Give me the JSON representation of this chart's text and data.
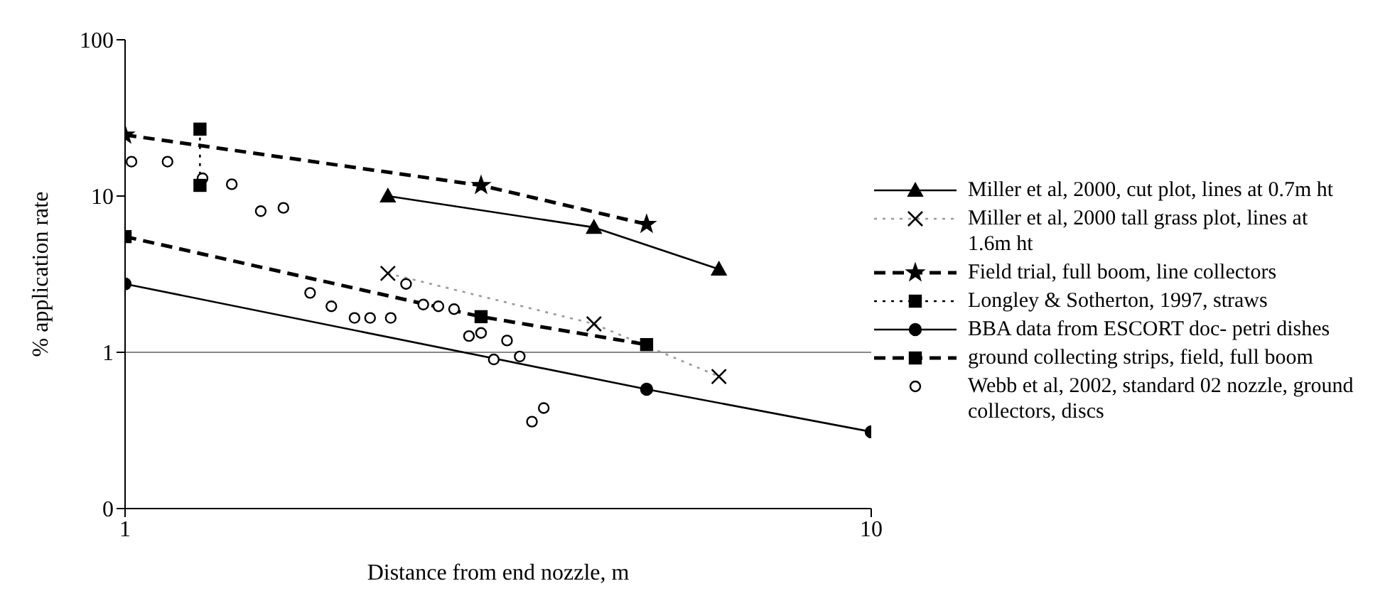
{
  "chart_data": {
    "type": "line",
    "xlabel": "Distance from end nozzle, m",
    "ylabel": "% application rate",
    "log": "xy",
    "xlim": [
      1,
      10
    ],
    "xticks": [
      1,
      10
    ],
    "ylim": [
      0.1,
      100
    ],
    "yticks": [
      {
        "value": 0.1,
        "label": "0"
      },
      1,
      10,
      100
    ],
    "grid": false,
    "legend": "right",
    "ref_lines": [
      {
        "axis": "y",
        "value": 1,
        "color": "#888888"
      }
    ],
    "series": [
      {
        "name": "Miller et al, 2000, cut plot, lines at 0.7m ht",
        "color": "#000000",
        "marker": "triangle",
        "line_style": "solid",
        "x": [
          2.25,
          4.25,
          6.25
        ],
        "values": [
          10,
          6.3,
          3.4
        ]
      },
      {
        "name": "Miller et al, 2000 tall grass plot, lines at 1.6m ht",
        "color": "#999999",
        "marker": "cross",
        "line_style": "dotted",
        "x": [
          2.25,
          4.25,
          6.25
        ],
        "values": [
          3.2,
          1.52,
          0.7
        ]
      },
      {
        "name": "Field trial, full boom, line collectors",
        "color": "#000000",
        "marker": "star",
        "line_style": "dashed",
        "x": [
          1,
          3,
          5
        ],
        "values": [
          24.6,
          11.7,
          6.6
        ]
      },
      {
        "name": "Longley & Sotherton, 1997, straws",
        "color": "#000000",
        "marker": "square",
        "line_style": "dotted",
        "x": [
          1.26,
          1.26
        ],
        "values": [
          26.8,
          11.7
        ]
      },
      {
        "name": "BBA data from ESCORT doc- petri dishes",
        "color": "#000000",
        "marker": "circle",
        "line_style": "solid",
        "x": [
          1,
          5,
          10
        ],
        "values": [
          2.74,
          0.58,
          0.31
        ]
      },
      {
        "name": "ground collecting strips, field, full boom",
        "color": "#000000",
        "marker": "square",
        "line_style": "dashed",
        "x": [
          1,
          3,
          5
        ],
        "values": [
          5.5,
          1.69,
          1.12
        ]
      },
      {
        "name": "Webb et al, 2002, standard 02 nozzle, ground collectors, discs",
        "type": "scatter",
        "color": "#000000",
        "marker": "circle",
        "x": [
          1.02,
          1.14,
          1.27,
          1.39,
          1.52,
          1.63,
          1.77,
          1.89,
          2.03,
          2.13,
          2.27,
          2.38,
          2.51,
          2.63,
          2.76,
          2.89,
          3.0,
          3.12,
          3.25,
          3.38,
          3.51,
          3.64
        ],
        "values": [
          16.6,
          16.6,
          13.0,
          11.9,
          8.0,
          8.4,
          2.4,
          1.97,
          1.66,
          1.66,
          1.66,
          2.74,
          2.02,
          1.97,
          1.89,
          1.27,
          1.33,
          0.9,
          1.19,
          0.94,
          0.36,
          0.44
        ]
      }
    ]
  }
}
